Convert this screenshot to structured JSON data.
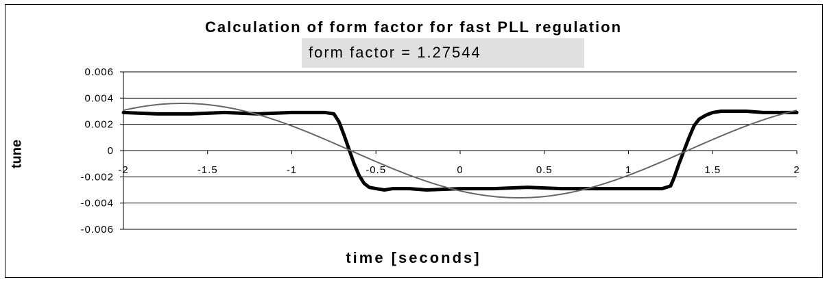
{
  "chart_data": {
    "type": "line",
    "title": "Calculation of form factor for fast PLL regulation",
    "annotation": "form factor = 1.27544",
    "xlabel": "time [seconds]",
    "ylabel": "tune",
    "xlim": [
      -2,
      2
    ],
    "ylim": [
      -0.006,
      0.006
    ],
    "xticks": [
      "-2",
      "-1.5",
      "-1",
      "-0.5",
      "0",
      "0.5",
      "1",
      "1.5",
      "2"
    ],
    "yticks": [
      "0.006",
      "0.004",
      "0.002",
      "0",
      "-0.002",
      "-0.004",
      "-0.006"
    ],
    "grid": "horizontal",
    "series": [
      {
        "style": "thick",
        "color": "#000000",
        "x": [
          -2.0,
          -1.8,
          -1.6,
          -1.4,
          -1.2,
          -1.0,
          -0.9,
          -0.8,
          -0.75,
          -0.72,
          -0.69,
          -0.66,
          -0.63,
          -0.6,
          -0.57,
          -0.54,
          -0.5,
          -0.45,
          -0.4,
          -0.3,
          -0.2,
          0.0,
          0.2,
          0.4,
          0.6,
          0.8,
          1.0,
          1.1,
          1.2,
          1.25,
          1.27,
          1.3,
          1.33,
          1.36,
          1.39,
          1.42,
          1.46,
          1.5,
          1.55,
          1.6,
          1.7,
          1.8,
          1.9,
          2.0
        ],
        "y": [
          0.0029,
          0.0028,
          0.0028,
          0.0029,
          0.0028,
          0.0029,
          0.0029,
          0.0029,
          0.0028,
          0.0022,
          0.0012,
          0.0001,
          -0.001,
          -0.0019,
          -0.0025,
          -0.0028,
          -0.0029,
          -0.003,
          -0.0029,
          -0.0029,
          -0.003,
          -0.0029,
          -0.0029,
          -0.0028,
          -0.0029,
          -0.0029,
          -0.0029,
          -0.0029,
          -0.0029,
          -0.0027,
          -0.0021,
          -0.001,
          0.0,
          0.001,
          0.0019,
          0.0024,
          0.0027,
          0.0029,
          0.003,
          0.003,
          0.003,
          0.0029,
          0.0029,
          0.0029
        ]
      },
      {
        "style": "thin",
        "color": "#666666",
        "amplitude": 0.0036,
        "period": 4.0,
        "peak_x": -1.65,
        "x": [
          -2.0,
          -1.75,
          -1.65,
          -1.5,
          -1.25,
          -1.0,
          -0.75,
          -0.5,
          -0.25,
          0.0,
          0.25,
          0.35,
          0.5,
          0.75,
          1.0,
          1.25,
          1.5,
          1.75,
          2.0
        ],
        "y": [
          0.00318,
          0.00355,
          0.0036,
          0.00353,
          0.00292,
          0.00185,
          0.00048,
          -0.00094,
          -0.0022,
          -0.00314,
          -0.00358,
          -0.0036,
          -0.00353,
          -0.00292,
          -0.00185,
          -0.00048,
          0.00094,
          0.0022,
          0.00314
        ]
      }
    ]
  }
}
